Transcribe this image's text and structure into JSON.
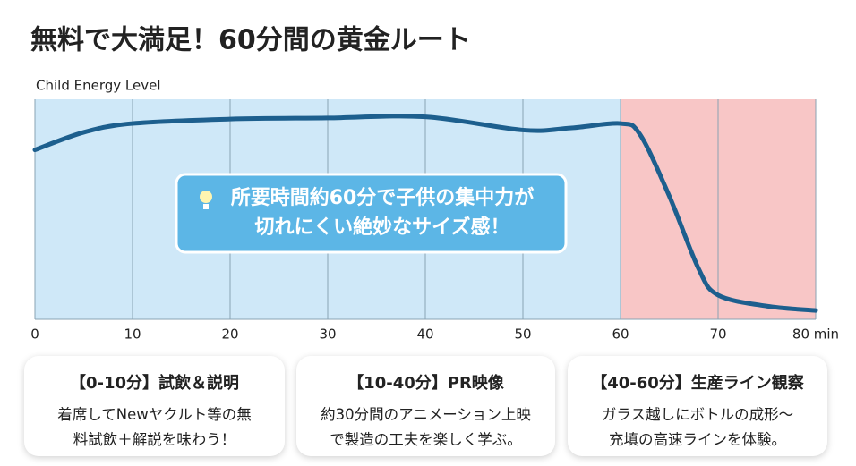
{
  "chart_data": {
    "type": "line",
    "title": "無料で大満足！60分間の黄金ルート",
    "y_label": "Child Energy Level",
    "x": [
      0,
      5,
      10,
      20,
      30,
      40,
      50,
      55,
      60,
      62,
      65,
      68,
      70,
      75,
      80
    ],
    "series": [
      {
        "name": "Child Energy Level",
        "color": "#1d5f8e",
        "values": [
          77,
          85,
          89,
          91,
          91.5,
          92,
          86,
          87,
          89,
          84,
          56,
          23,
          11,
          6,
          4
        ]
      }
    ],
    "xlim": [
      0,
      80
    ],
    "xticks": [
      0,
      10,
      20,
      30,
      40,
      50,
      60,
      70,
      {
        "value": 80,
        "label": "80 min"
      }
    ],
    "ylim": [
      0,
      100
    ],
    "grid": true,
    "bands": [
      {
        "from": 0,
        "to": 60,
        "color": "#cfe8f8"
      },
      {
        "from": 60,
        "to": 80,
        "color": "#f8c6c6"
      }
    ],
    "callout": [
      "所要時間約60分で子供の集中力が",
      "切れにくい絶妙なサイズ感！"
    ]
  },
  "cards": [
    {
      "title": "【0-10分】試飲＆説明",
      "body": [
        "着席してNewヤクルト等の無",
        "料試飲＋解説を味わう！"
      ]
    },
    {
      "title": "【10-40分】PR映像",
      "body": [
        "約30分間のアニメーション上映",
        "で製造の工夫を楽しく学ぶ。"
      ]
    },
    {
      "title": "【40-60分】生産ライン観察",
      "body": [
        "ガラス越しにボトルの成形〜",
        "充填の高速ラインを体験。"
      ]
    }
  ]
}
